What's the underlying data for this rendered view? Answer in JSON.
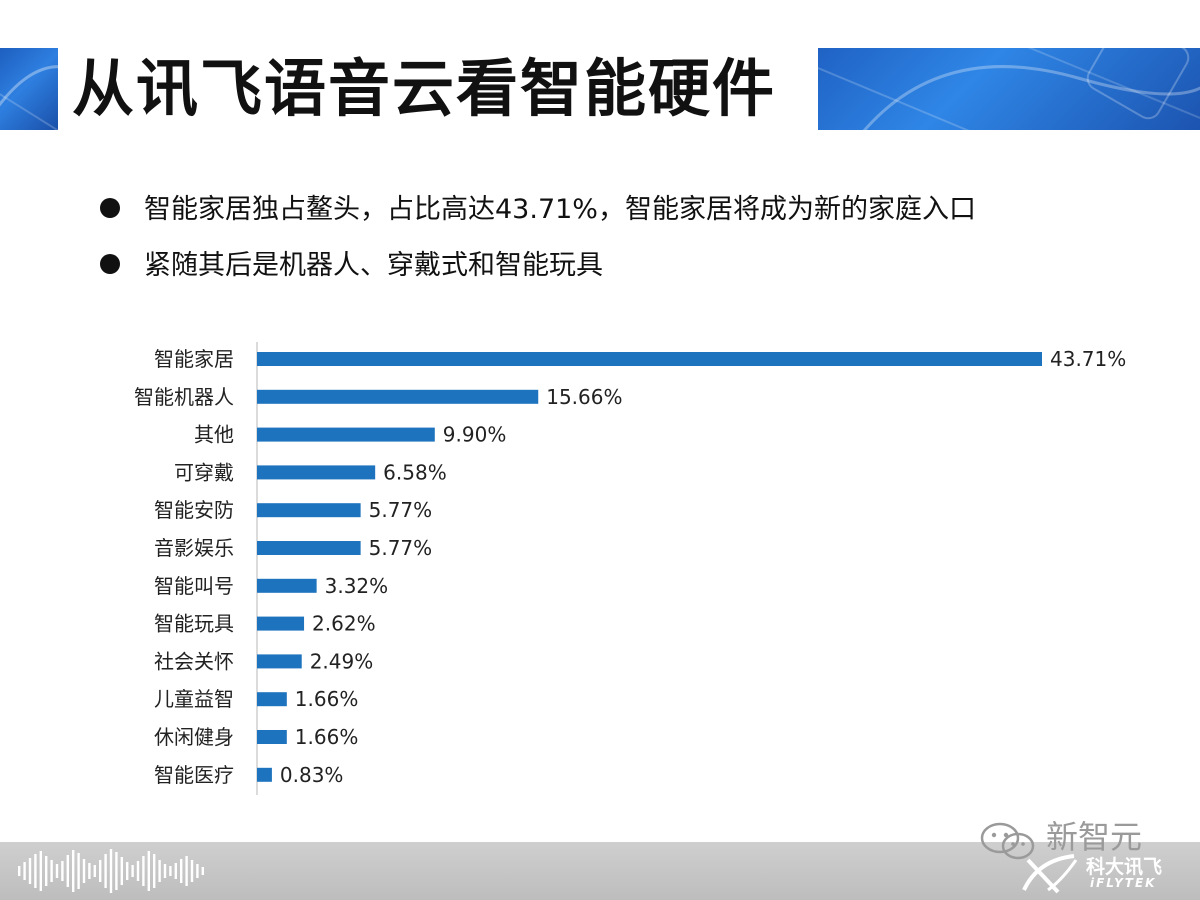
{
  "slide": {
    "title": "从讯飞语音云看智能硬件",
    "bullets": [
      "智能家居独占鳌头，占比高达43.71%，智能家居将成为新的家庭入口",
      "紧随其后是机器人、穿戴式和智能玩具"
    ]
  },
  "colors": {
    "bar": "#1e73be",
    "header_blue": "#2a78d8",
    "footer_gray": "#c8c8c8"
  },
  "chart_data": {
    "type": "bar",
    "orientation": "horizontal",
    "categories": [
      "智能家居",
      "智能机器人",
      "其他",
      "可穿戴",
      "智能安防",
      "音影娱乐",
      "智能叫号",
      "智能玩具",
      "社会关怀",
      "儿童益智",
      "休闲健身",
      "智能医疗"
    ],
    "values": [
      43.71,
      15.66,
      9.9,
      6.58,
      5.77,
      5.77,
      3.32,
      2.62,
      2.49,
      1.66,
      1.66,
      0.83
    ],
    "value_labels": [
      "43.71%",
      "15.66%",
      "9.90%",
      "6.58%",
      "5.77%",
      "5.77%",
      "3.32%",
      "2.62%",
      "2.49%",
      "1.66%",
      "1.66%",
      "0.83%"
    ],
    "xlim": [
      0,
      43.71
    ],
    "grid": false,
    "legend": "none"
  },
  "watermark": {
    "account": "新智元",
    "logo_cn": "科大讯飞",
    "logo_en": "iFLYTEK"
  }
}
